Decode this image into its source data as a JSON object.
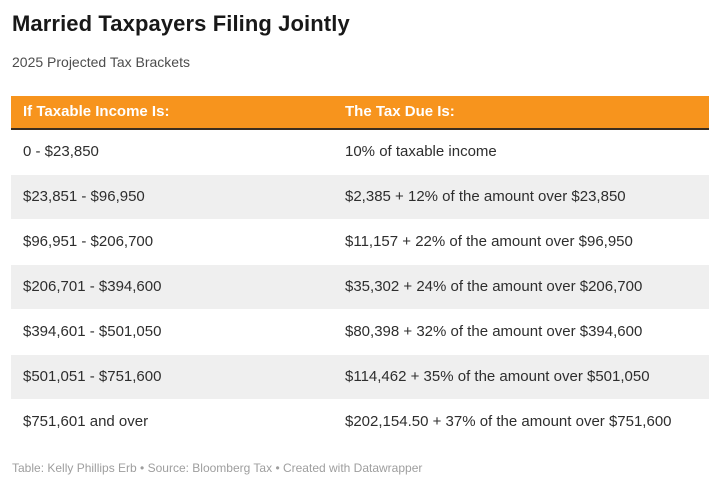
{
  "page": {
    "title": "Married Taxpayers Filing Jointly",
    "subtitle": "2025 Projected Tax Brackets",
    "footer": "Table: Kelly Phillips Erb • Source: Bloomberg Tax • Created with Datawrapper"
  },
  "colors": {
    "header_bg": "#f7941d",
    "header_text": "#ffffff",
    "header_underline": "#3b2d1f",
    "row_alt_bg": "#efefef",
    "body_text": "#2e2e2e",
    "footer_text": "#9e9e9e"
  },
  "chart_data": {
    "type": "table",
    "title": "Married Taxpayers Filing Jointly",
    "subtitle": "2025 Projected Tax Brackets",
    "columns": [
      "If Taxable Income Is:",
      "The Tax Due Is:"
    ],
    "rows": [
      [
        "0 - $23,850",
        "10% of taxable income"
      ],
      [
        "$23,851 - $96,950",
        "$2,385 + 12% of the amount over $23,850"
      ],
      [
        "$96,951 - $206,700",
        "$11,157 + 22% of the amount over $96,950"
      ],
      [
        "$206,701 - $394,600",
        "$35,302 + 24% of the amount over $206,700"
      ],
      [
        "$394,601 - $501,050",
        "$80,398 + 32% of the amount over $394,600"
      ],
      [
        "$501,051 - $751,600",
        "$114,462 + 35% of the amount over $501,050"
      ],
      [
        "$751,601 and over",
        "$202,154.50 + 37% of the amount over $751,600"
      ]
    ],
    "footer": "Table: Kelly Phillips Erb • Source: Bloomberg Tax • Created with Datawrapper",
    "layout": {
      "striped": true,
      "header_style": "orange banner with dark underline"
    }
  }
}
